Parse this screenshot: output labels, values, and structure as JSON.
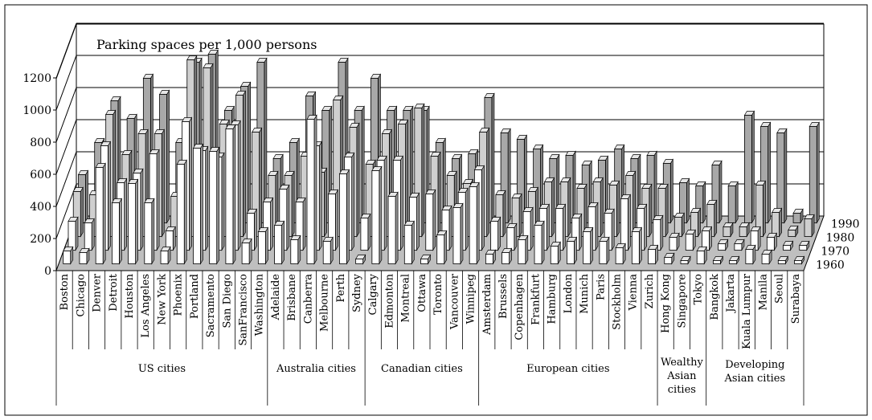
{
  "chart_data": {
    "type": "bar",
    "title": "Parking spaces per 1,000 persons",
    "ylim": [
      0,
      1200
    ],
    "yticks": [
      "0",
      "200",
      "400",
      "600",
      "800",
      "1000",
      "1200"
    ],
    "series": [
      {
        "name": "1960",
        "fill": "#ffffff"
      },
      {
        "name": "1970",
        "fill": "#ffffff"
      },
      {
        "name": "1980",
        "fill": "#cfcfcf"
      },
      {
        "name": "1990",
        "fill": "#a8a8a8"
      }
    ],
    "groups": [
      {
        "label": "US cities",
        "categories": [
          {
            "name": "Boston",
            "values": [
              80,
              180,
              280,
              300
            ]
          },
          {
            "name": "Chicago",
            "values": [
              70,
              170,
              260,
              500
            ]
          },
          {
            "name": "Denver",
            "values": [
              600,
              650,
              760,
              760
            ]
          },
          {
            "name": "Detroit",
            "values": [
              380,
              420,
              510,
              650
            ]
          },
          {
            "name": "Houston",
            "values": [
              500,
              480,
              640,
              900
            ]
          },
          {
            "name": "Los Angeles",
            "values": [
              380,
              600,
              640,
              800
            ]
          },
          {
            "name": "New York",
            "values": [
              80,
              120,
              250,
              500
            ]
          },
          {
            "name": "Phoenix",
            "values": [
              620,
              800,
              1100,
              1000
            ]
          },
          {
            "name": "Portland",
            "values": [
              720,
              620,
              1050,
              1050
            ]
          },
          {
            "name": "Sacramento",
            "values": [
              700,
              580,
              700,
              700
            ]
          },
          {
            "name": "San Diego",
            "values": [
              840,
              780,
              880,
              850
            ]
          },
          {
            "name": "SanFrancisco",
            "values": [
              130,
              230,
              650,
              1000
            ]
          },
          {
            "name": "Washington",
            "values": [
              200,
              300,
              380,
              400
            ]
          }
        ]
      },
      {
        "label": "Australia cities",
        "categories": [
          {
            "name": "Adelaide",
            "values": [
              240,
              380,
              380,
              500
            ]
          },
          {
            "name": "Brisbane",
            "values": [
              150,
              300,
              500,
              790
            ]
          },
          {
            "name": "Canberra",
            "values": [
              900,
              650,
              400,
              700
            ]
          },
          {
            "name": "Melbourne",
            "values": [
              140,
              350,
              850,
              1000
            ]
          },
          {
            "name": "Perth",
            "values": [
              560,
              580,
              680,
              700
            ]
          },
          {
            "name": "Sydney",
            "values": [
              30,
              200,
              450,
              900
            ]
          }
        ]
      },
      {
        "label": "Canadian cities",
        "categories": [
          {
            "name": "Calgary",
            "values": [
              580,
              560,
              640,
              700
            ]
          },
          {
            "name": "Edmonton",
            "values": [
              420,
              560,
              700,
              700
            ]
          },
          {
            "name": "Montreal",
            "values": [
              240,
              330,
              800,
              700
            ]
          },
          {
            "name": "Ottawa",
            "values": [
              30,
              350,
              500,
              500
            ]
          },
          {
            "name": "Toronto",
            "values": [
              180,
              250,
              380,
              400
            ]
          },
          {
            "name": "Vancouver",
            "values": [
              350,
              360,
              330,
              430
            ]
          },
          {
            "name": "Winnipeg",
            "values": [
              480,
              500,
              650,
              780
            ]
          }
        ]
      },
      {
        "label": "European cities",
        "categories": [
          {
            "name": "Amsterdam",
            "values": [
              60,
              180,
              260,
              560
            ]
          },
          {
            "name": "Brussels",
            "values": [
              70,
              140,
              240,
              520
            ]
          },
          {
            "name": "Copenhagen",
            "values": [
              150,
              240,
              280,
              460
            ]
          },
          {
            "name": "Frankfurt",
            "values": [
              240,
              260,
              340,
              400
            ]
          },
          {
            "name": "Hamburg",
            "values": [
              110,
              260,
              340,
              420
            ]
          },
          {
            "name": "London",
            "values": [
              140,
              200,
              300,
              360
            ]
          },
          {
            "name": "Munich",
            "values": [
              200,
              270,
              340,
              390
            ]
          },
          {
            "name": "Paris",
            "values": [
              140,
              230,
              320,
              460
            ]
          },
          {
            "name": "Stockholm",
            "values": [
              100,
              320,
              380,
              400
            ]
          },
          {
            "name": "Vienna",
            "values": [
              200,
              260,
              300,
              420
            ]
          },
          {
            "name": "Zurich",
            "values": [
              90,
              190,
              300,
              370
            ]
          }
        ]
      },
      {
        "label": "Wealthy Asian cities",
        "label_lines": [
          "Wealthy",
          "Asian",
          "cities"
        ],
        "categories": [
          {
            "name": "Hong Kong",
            "values": [
              40,
              80,
              120,
              250
            ]
          },
          {
            "name": "Singapore",
            "values": [
              20,
              100,
              150,
              230
            ]
          },
          {
            "name": "Tokyo",
            "values": [
              80,
              120,
              200,
              360
            ]
          }
        ]
      },
      {
        "label": "Developing Asian cities",
        "label_lines": [
          "Developing",
          "Asian cities"
        ],
        "categories": [
          {
            "name": "Bangkok",
            "values": [
              20,
              40,
              60,
              230
            ]
          },
          {
            "name": "Jakarta",
            "values": [
              20,
              40,
              60,
              670
            ]
          },
          {
            "name": "Kuala Lumpur",
            "values": [
              90,
              120,
              320,
              600
            ]
          },
          {
            "name": "Manila",
            "values": [
              60,
              80,
              150,
              560
            ]
          },
          {
            "name": "Seoul",
            "values": [
              20,
              30,
              40,
              60
            ]
          },
          {
            "name": "Surabaya",
            "values": [
              20,
              30,
              110,
              600
            ]
          }
        ]
      }
    ]
  }
}
